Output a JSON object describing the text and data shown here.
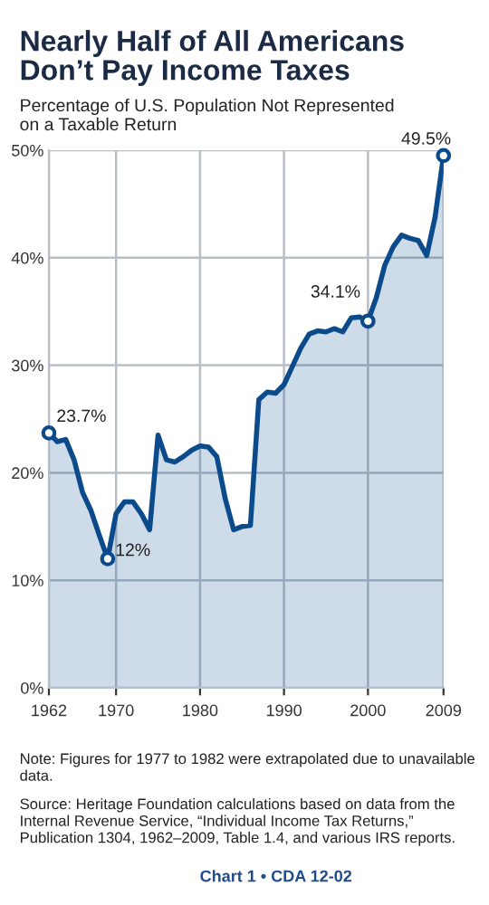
{
  "chart_data": {
    "type": "area",
    "title": "Nearly Half of All Americans\nDon’t Pay Income Taxes",
    "subtitle": "Percentage of U.S. Population Not Represented\non a Taxable Return",
    "x": [
      1962,
      1963,
      1964,
      1965,
      1966,
      1967,
      1968,
      1969,
      1970,
      1971,
      1972,
      1973,
      1974,
      1975,
      1976,
      1977,
      1978,
      1979,
      1980,
      1981,
      1982,
      1983,
      1984,
      1985,
      1986,
      1987,
      1988,
      1989,
      1990,
      1991,
      1992,
      1993,
      1994,
      1995,
      1996,
      1997,
      1998,
      1999,
      2000,
      2001,
      2002,
      2003,
      2004,
      2005,
      2006,
      2007,
      2008,
      2009
    ],
    "series": [
      {
        "color": "#0b4a8b",
        "values": [
          23.7,
          22.9,
          23.1,
          21.2,
          18.2,
          16.5,
          14.2,
          12,
          16.2,
          17.3,
          17.3,
          16.2,
          14.7,
          23.5,
          21.2,
          21.0,
          21.5,
          22.1,
          22.5,
          22.4,
          21.5,
          17.6,
          14.7,
          15.0,
          15.1,
          26.8,
          27.5,
          27.4,
          28.2,
          29.9,
          31.6,
          32.9,
          33.2,
          33.1,
          33.4,
          33.1,
          34.4,
          34.5,
          34.1,
          36.3,
          39.3,
          41.0,
          42.1,
          41.8,
          41.6,
          40.2,
          43.8,
          49.5
        ]
      }
    ],
    "xlim": [
      1962,
      2009
    ],
    "xticks": [
      1962,
      1970,
      1980,
      1990,
      2000,
      2009
    ],
    "ylim": [
      0,
      50
    ],
    "yticks": [
      {
        "value": 0,
        "label": "0%"
      },
      {
        "value": 10,
        "label": "10%"
      },
      {
        "value": 20,
        "label": "20%"
      },
      {
        "value": 30,
        "label": "30%"
      },
      {
        "value": 40,
        "label": "40%"
      },
      {
        "value": 50,
        "label": "50%"
      }
    ],
    "grid": true,
    "marker": "none",
    "line_style": "solid",
    "annotations": [
      {
        "text": "23.7%",
        "x": 1962,
        "y": 23.7
      },
      {
        "text": "12%",
        "x": 1969,
        "y": 12
      },
      {
        "text": "34.1%",
        "x": 2000,
        "y": 34.1
      },
      {
        "text": "49.5%",
        "x": 2009,
        "y": 49.5
      },
      "Note: Figures for 1977 to 1982 were extrapolated due to unavailable data.",
      "Source: Heritage Foundation calculations based on data from the Internal Revenue Service, “Individual Income Tax Returns,” Publication 1304, 1962–2009, Table 1.4, and various IRS reports.",
      "Chart 1 • CDA 12-02"
    ]
  }
}
